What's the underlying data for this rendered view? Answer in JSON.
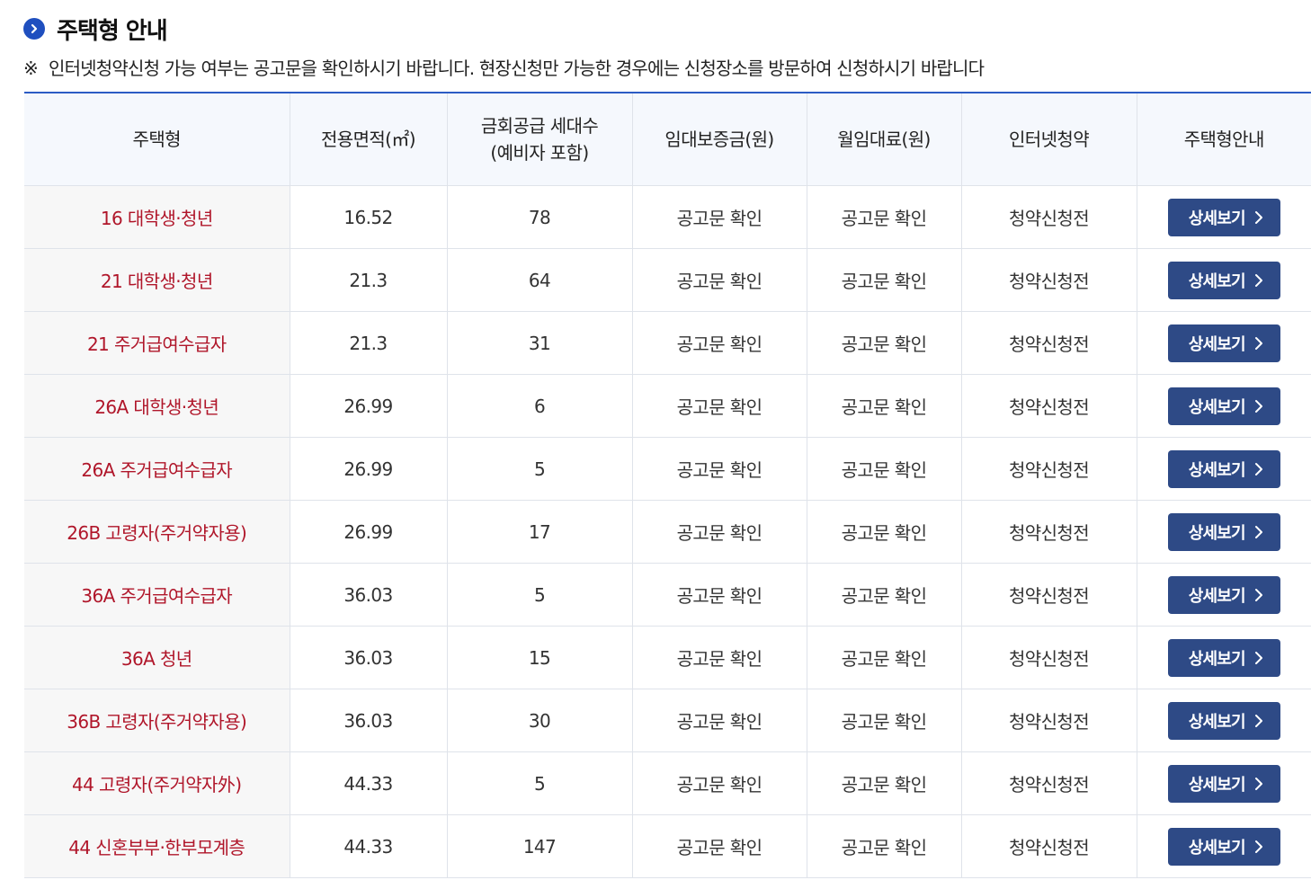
{
  "header": {
    "title": "주택형 안내",
    "icon": "chevron-right-circle-icon",
    "accent_color": "#1f4fbf"
  },
  "notice": {
    "mark": "※",
    "text": "인터넷청약신청 가능 여부는 공고문을 확인하시기 바랍니다. 현장신청만 가능한 경우에는 신청장소를 방문하여 신청하시기 바랍니다"
  },
  "table": {
    "columns": [
      {
        "line1": "주택형",
        "line2": ""
      },
      {
        "line1": "전용면적(㎡)",
        "line2": ""
      },
      {
        "line1": "금회공급 세대수",
        "line2": "(예비자 포함)"
      },
      {
        "line1": "임대보증금(원)",
        "line2": ""
      },
      {
        "line1": "월임대료(원)",
        "line2": ""
      },
      {
        "line1": "인터넷청약",
        "line2": ""
      },
      {
        "line1": "주택형안내",
        "line2": ""
      }
    ],
    "type_color": "#b0162a",
    "button_color": "#2e4a86",
    "rows": [
      {
        "type": "16 대학생·청년",
        "area": "16.52",
        "units": "78",
        "deposit": "공고문 확인",
        "rent": "공고문 확인",
        "status": "청약신청전",
        "button": "상세보기"
      },
      {
        "type": "21 대학생·청년",
        "area": "21.3",
        "units": "64",
        "deposit": "공고문 확인",
        "rent": "공고문 확인",
        "status": "청약신청전",
        "button": "상세보기"
      },
      {
        "type": "21 주거급여수급자",
        "area": "21.3",
        "units": "31",
        "deposit": "공고문 확인",
        "rent": "공고문 확인",
        "status": "청약신청전",
        "button": "상세보기"
      },
      {
        "type": "26A 대학생·청년",
        "area": "26.99",
        "units": "6",
        "deposit": "공고문 확인",
        "rent": "공고문 확인",
        "status": "청약신청전",
        "button": "상세보기"
      },
      {
        "type": "26A 주거급여수급자",
        "area": "26.99",
        "units": "5",
        "deposit": "공고문 확인",
        "rent": "공고문 확인",
        "status": "청약신청전",
        "button": "상세보기"
      },
      {
        "type": "26B 고령자(주거약자용)",
        "area": "26.99",
        "units": "17",
        "deposit": "공고문 확인",
        "rent": "공고문 확인",
        "status": "청약신청전",
        "button": "상세보기"
      },
      {
        "type": "36A 주거급여수급자",
        "area": "36.03",
        "units": "5",
        "deposit": "공고문 확인",
        "rent": "공고문 확인",
        "status": "청약신청전",
        "button": "상세보기"
      },
      {
        "type": "36A 청년",
        "area": "36.03",
        "units": "15",
        "deposit": "공고문 확인",
        "rent": "공고문 확인",
        "status": "청약신청전",
        "button": "상세보기"
      },
      {
        "type": "36B 고령자(주거약자용)",
        "area": "36.03",
        "units": "30",
        "deposit": "공고문 확인",
        "rent": "공고문 확인",
        "status": "청약신청전",
        "button": "상세보기"
      },
      {
        "type": "44 고령자(주거약자外)",
        "area": "44.33",
        "units": "5",
        "deposit": "공고문 확인",
        "rent": "공고문 확인",
        "status": "청약신청전",
        "button": "상세보기"
      },
      {
        "type": "44 신혼부부·한부모계층",
        "area": "44.33",
        "units": "147",
        "deposit": "공고문 확인",
        "rent": "공고문 확인",
        "status": "청약신청전",
        "button": "상세보기"
      }
    ]
  }
}
